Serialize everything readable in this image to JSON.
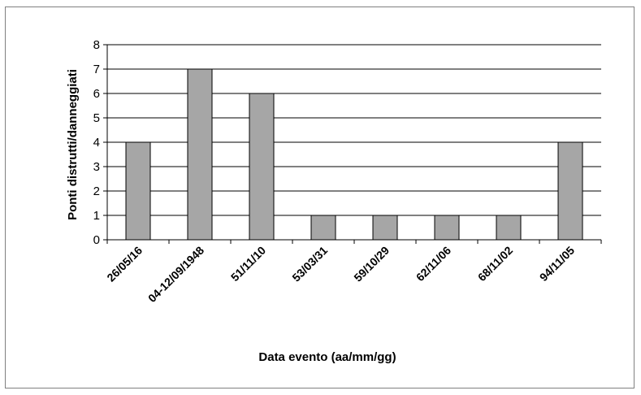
{
  "chart_data": {
    "type": "bar",
    "categories": [
      "26/05/16",
      "04-12/09/1948",
      "51/11/10",
      "53/03/31",
      "59/10/29",
      "62/11/06",
      "68/11/02",
      "94/11/05"
    ],
    "values": [
      4,
      7,
      6,
      1,
      1,
      1,
      1,
      4
    ],
    "xlabel": "Data evento (aa/mm/gg)",
    "ylabel": "Ponti distrutti/danneggiati",
    "ylim": [
      0,
      8
    ],
    "yticks": [
      0,
      1,
      2,
      3,
      4,
      5,
      6,
      7,
      8
    ],
    "grid": true,
    "legend": "none",
    "colors": {
      "bar": "#a6a6a6",
      "bar_stroke": "#000000",
      "grid": "#000000",
      "frame": "#808080"
    }
  }
}
